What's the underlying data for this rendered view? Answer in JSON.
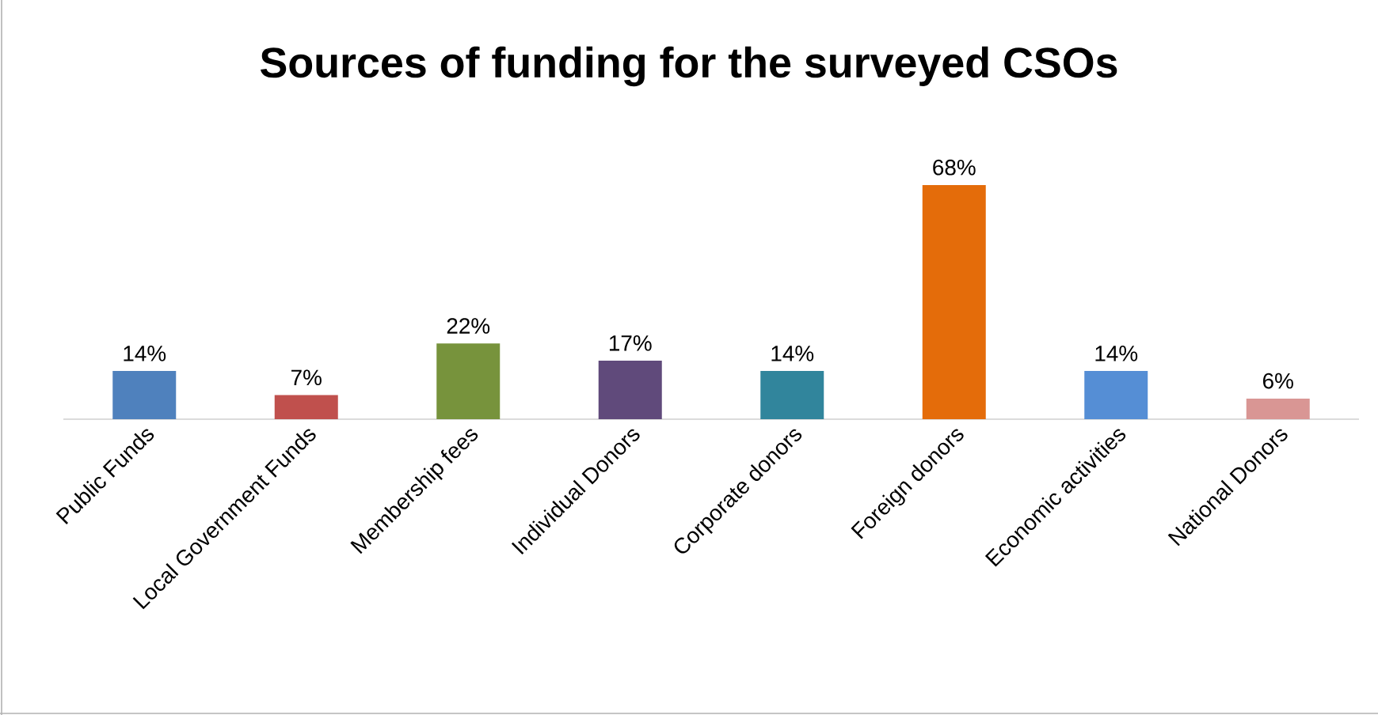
{
  "chart_data": {
    "type": "bar",
    "title": "Sources of funding for the surveyed CSOs",
    "categories": [
      "Public Funds",
      "Local Government Funds",
      "Membership fees",
      "Individual Donors",
      "Corporate donors",
      "Foreign donors",
      "Economic activities",
      "National Donors"
    ],
    "values": [
      14,
      7,
      22,
      17,
      14,
      68,
      14,
      6
    ],
    "value_labels": [
      "14%",
      "7%",
      "22%",
      "17%",
      "14%",
      "68%",
      "14%",
      "6%"
    ],
    "colors": [
      "#4f81bd",
      "#c0504d",
      "#77933c",
      "#604a7b",
      "#31859c",
      "#e46c0a",
      "#558ed5",
      "#d99694"
    ]
  }
}
